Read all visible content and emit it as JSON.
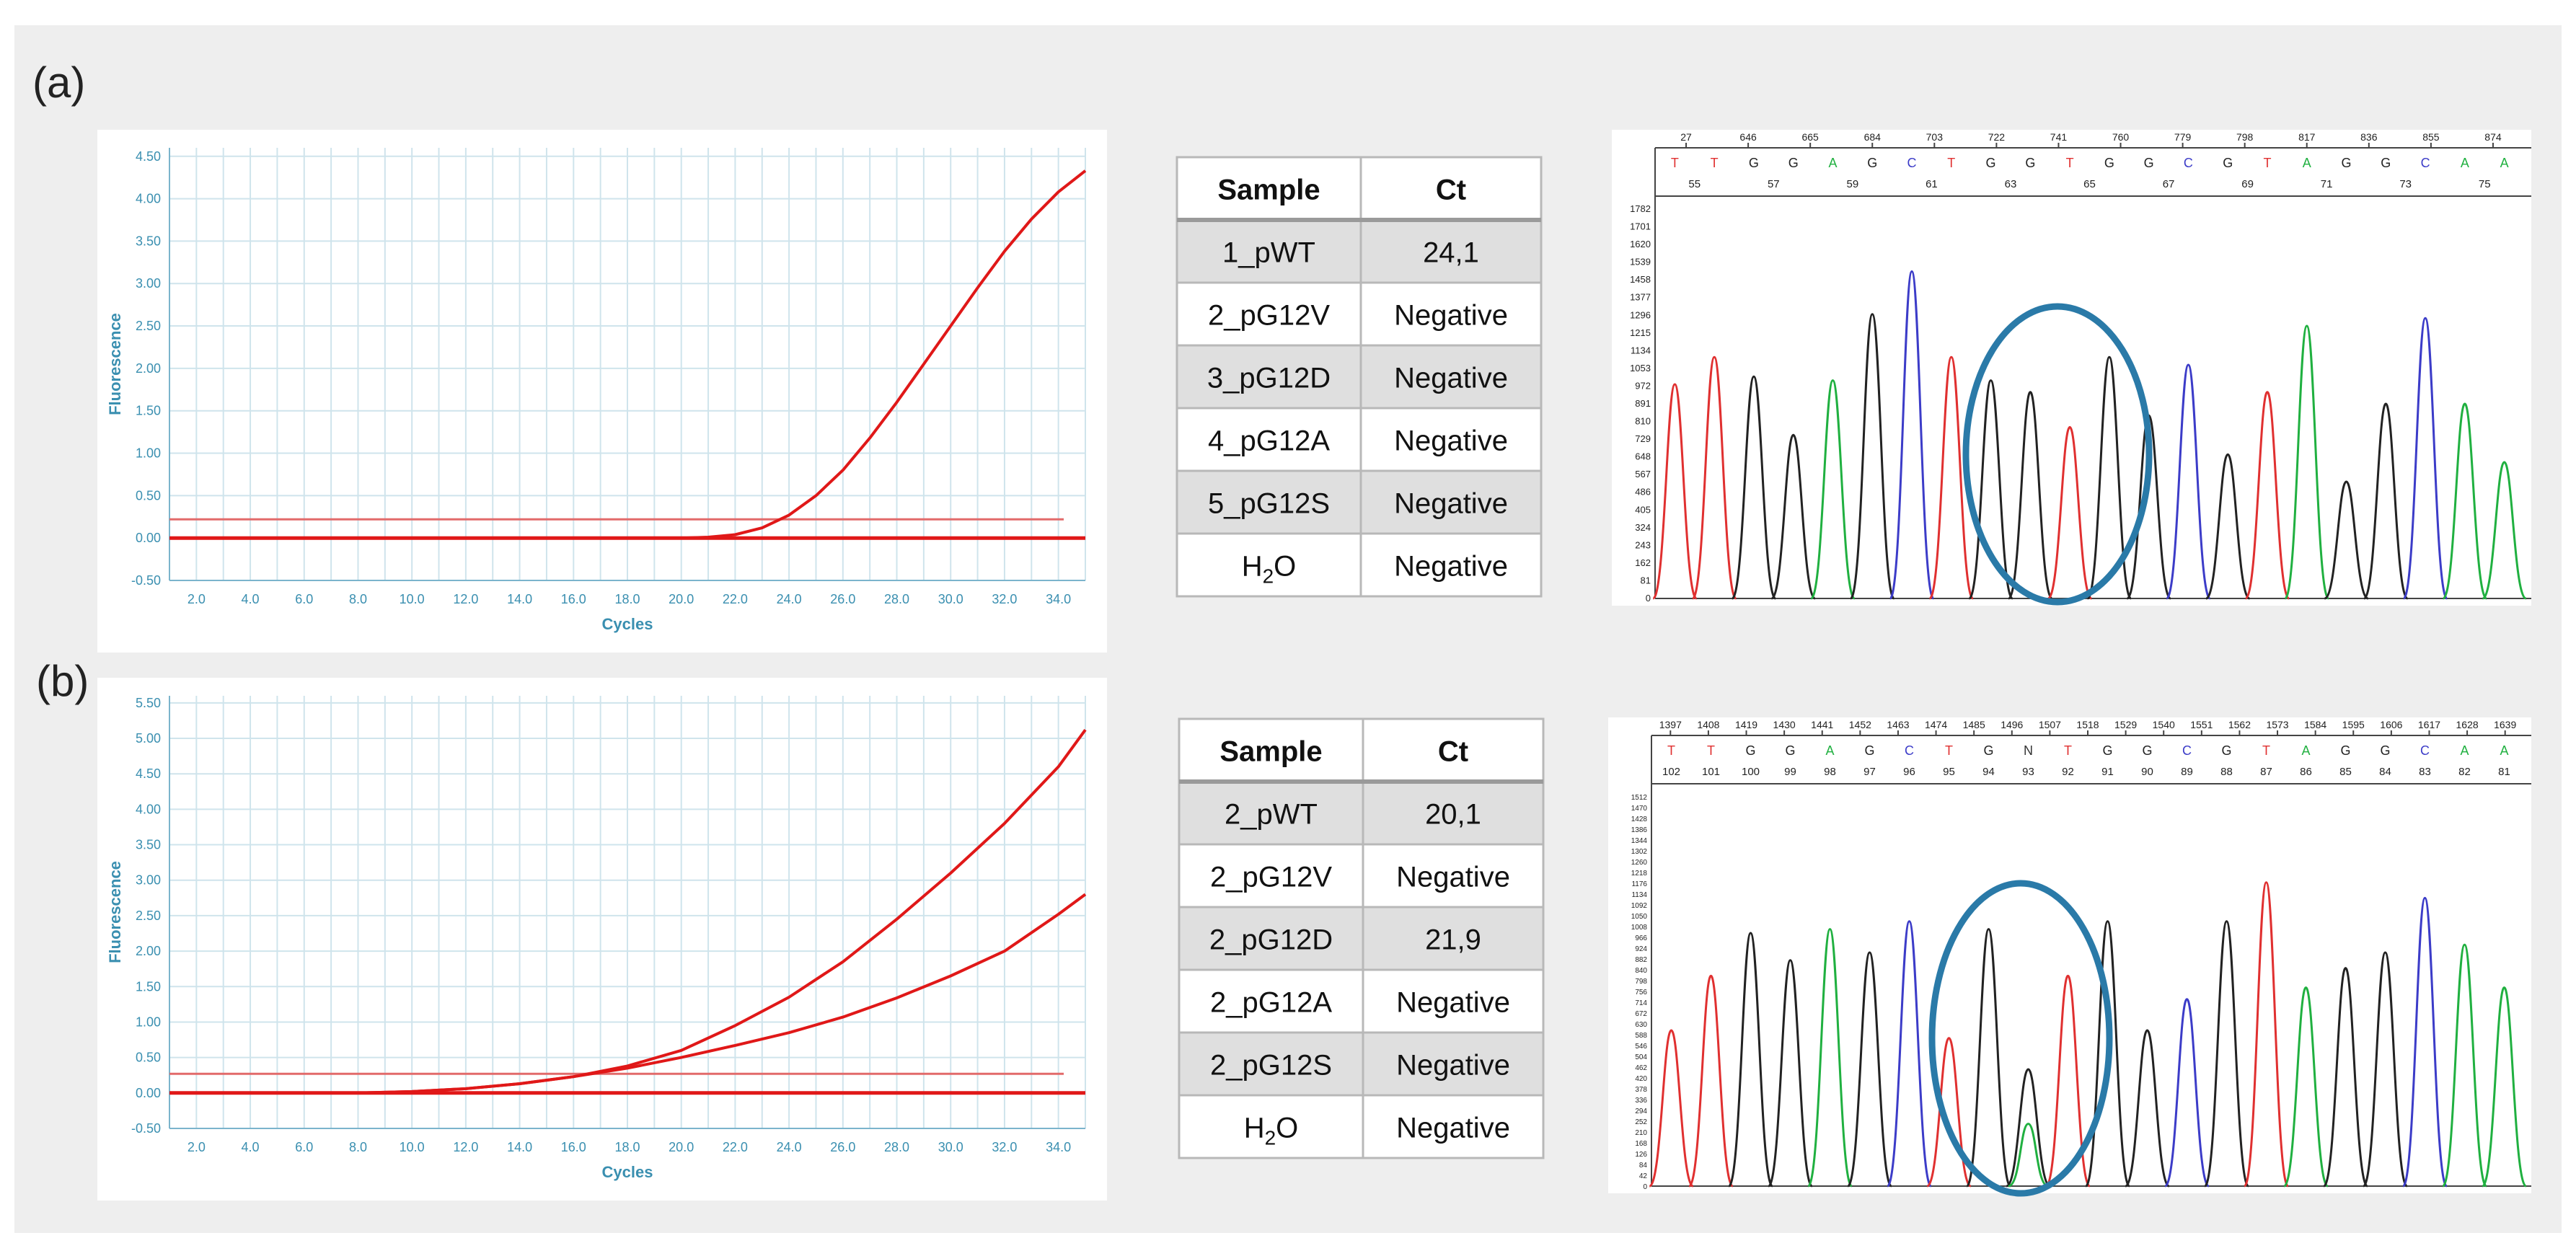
{
  "panels": [
    {
      "label": "(a)",
      "table": {
        "headers": [
          "Sample",
          "Ct"
        ],
        "rows": [
          {
            "sample": "1_pWT",
            "ct": "24,1"
          },
          {
            "sample": "2_pG12V",
            "ct": "Negative"
          },
          {
            "sample": "3_pG12D",
            "ct": "Negative"
          },
          {
            "sample": "4_pG12A",
            "ct": "Negative"
          },
          {
            "sample": "5_pG12S",
            "ct": "Negative"
          },
          {
            "sample": "H2O",
            "ct": "Negative"
          }
        ]
      },
      "chromatogram": {
        "top_positions": [
          "27",
          "646",
          "665",
          "684",
          "703",
          "722",
          "741",
          "760",
          "779",
          "798",
          "817",
          "836",
          "855",
          "874"
        ],
        "bases": [
          "T",
          "T",
          "G",
          "G",
          "A",
          "G",
          "C",
          "T",
          "G",
          "G",
          "T",
          "G",
          "G",
          "C",
          "G",
          "T",
          "A",
          "G",
          "G",
          "C",
          "A",
          "A"
        ],
        "base_numbers": [
          "55",
          "57",
          "59",
          "61",
          "63",
          "65",
          "67",
          "69",
          "71",
          "73",
          "75"
        ],
        "y_ticks": [
          "1782",
          "1701",
          "1620",
          "1539",
          "1458",
          "1377",
          "1296",
          "1215",
          "1134",
          "1053",
          "972",
          "891",
          "810",
          "729",
          "648",
          "567",
          "486",
          "405",
          "324",
          "243",
          "162",
          "81",
          "0"
        ]
      }
    },
    {
      "label": "(b)",
      "table": {
        "headers": [
          "Sample",
          "Ct"
        ],
        "rows": [
          {
            "sample": "2_pWT",
            "ct": "20,1"
          },
          {
            "sample": "2_pG12V",
            "ct": "Negative"
          },
          {
            "sample": "2_pG12D",
            "ct": "21,9"
          },
          {
            "sample": "2_pG12A",
            "ct": "Negative"
          },
          {
            "sample": "2_pG12S",
            "ct": "Negative"
          },
          {
            "sample": "H2O",
            "ct": "Negative"
          }
        ]
      },
      "chromatogram": {
        "top_positions": [
          "1397",
          "1408",
          "1419",
          "1430",
          "1441",
          "1452",
          "1463",
          "1474",
          "1485",
          "1496",
          "1507",
          "1518",
          "1529",
          "1540",
          "1551",
          "1562",
          "1573",
          "1584",
          "1595",
          "1606",
          "1617",
          "1628",
          "1639"
        ],
        "bases": [
          "T",
          "T",
          "G",
          "G",
          "A",
          "G",
          "C",
          "T",
          "G",
          "N",
          "T",
          "G",
          "G",
          "C",
          "G",
          "T",
          "A",
          "G",
          "G",
          "C",
          "A",
          "A"
        ],
        "base_numbers": [
          "102",
          "101",
          "100",
          "99",
          "98",
          "97",
          "96",
          "95",
          "94",
          "93",
          "92",
          "91",
          "90",
          "89",
          "88",
          "87",
          "86",
          "85",
          "84",
          "83",
          "82",
          "81"
        ],
        "y_ticks": [
          "1512",
          "1470",
          "1428",
          "1386",
          "1344",
          "1302",
          "1260",
          "1218",
          "1176",
          "1134",
          "1092",
          "1050",
          "1008",
          "966",
          "924",
          "882",
          "840",
          "798",
          "756",
          "714",
          "672",
          "630",
          "588",
          "546",
          "504",
          "462",
          "420",
          "378",
          "336",
          "294",
          "252",
          "210",
          "168",
          "126",
          "84",
          "42",
          "0"
        ]
      }
    }
  ],
  "chart_data": [
    {
      "type": "line",
      "panel": "(a)",
      "xlabel": "Cycles",
      "ylabel": "Fluorescence",
      "xlim": [
        1,
        35
      ],
      "ylim": [
        -0.5,
        4.6
      ],
      "x_ticks": [
        "2.0",
        "4.0",
        "6.0",
        "8.0",
        "10.0",
        "12.0",
        "14.0",
        "16.0",
        "18.0",
        "20.0",
        "22.0",
        "24.0",
        "26.0",
        "28.0",
        "30.0",
        "32.0",
        "34.0"
      ],
      "y_ticks": [
        "-0.50",
        "0.00",
        "0.50",
        "1.00",
        "1.50",
        "2.00",
        "2.50",
        "3.00",
        "3.50",
        "4.00",
        "4.50"
      ],
      "threshold": 0.22,
      "series": [
        {
          "x": [
            1,
            20,
            21,
            22,
            23,
            24,
            25,
            26,
            27,
            28,
            29,
            30,
            31,
            32,
            33,
            34,
            35
          ],
          "y": [
            0,
            0,
            0.01,
            0.04,
            0.12,
            0.27,
            0.5,
            0.8,
            1.18,
            1.6,
            2.05,
            2.5,
            2.95,
            3.38,
            3.76,
            4.08,
            4.33
          ]
        },
        {
          "x": [
            1,
            35
          ],
          "y": [
            0,
            0
          ]
        }
      ]
    },
    {
      "type": "line",
      "panel": "(b)",
      "xlabel": "Cycles",
      "ylabel": "Fluorescence",
      "xlim": [
        1,
        35
      ],
      "ylim": [
        -0.5,
        5.6
      ],
      "x_ticks": [
        "2.0",
        "4.0",
        "6.0",
        "8.0",
        "10.0",
        "12.0",
        "14.0",
        "16.0",
        "18.0",
        "20.0",
        "22.0",
        "24.0",
        "26.0",
        "28.0",
        "30.0",
        "32.0",
        "34.0"
      ],
      "y_ticks": [
        "-0.50",
        "0.00",
        "0.50",
        "1.00",
        "1.50",
        "2.00",
        "2.50",
        "3.00",
        "3.50",
        "4.00",
        "4.50",
        "5.00",
        "5.50"
      ],
      "threshold": 0.27,
      "series": [
        {
          "x": [
            8,
            10,
            12,
            14,
            16,
            18,
            20,
            22,
            24,
            26,
            28,
            30,
            32,
            34,
            35
          ],
          "y": [
            0,
            0.02,
            0.06,
            0.13,
            0.23,
            0.38,
            0.6,
            0.95,
            1.35,
            1.85,
            2.45,
            3.1,
            3.8,
            4.6,
            5.12
          ]
        },
        {
          "x": [
            8,
            10,
            12,
            14,
            16,
            18,
            20,
            22,
            24,
            26,
            28,
            30,
            32,
            34,
            35
          ],
          "y": [
            0,
            0.02,
            0.06,
            0.13,
            0.23,
            0.35,
            0.5,
            0.67,
            0.85,
            1.07,
            1.34,
            1.65,
            2.0,
            2.52,
            2.8
          ]
        },
        {
          "x": [
            1,
            35
          ],
          "y": [
            0,
            0
          ]
        }
      ]
    }
  ]
}
